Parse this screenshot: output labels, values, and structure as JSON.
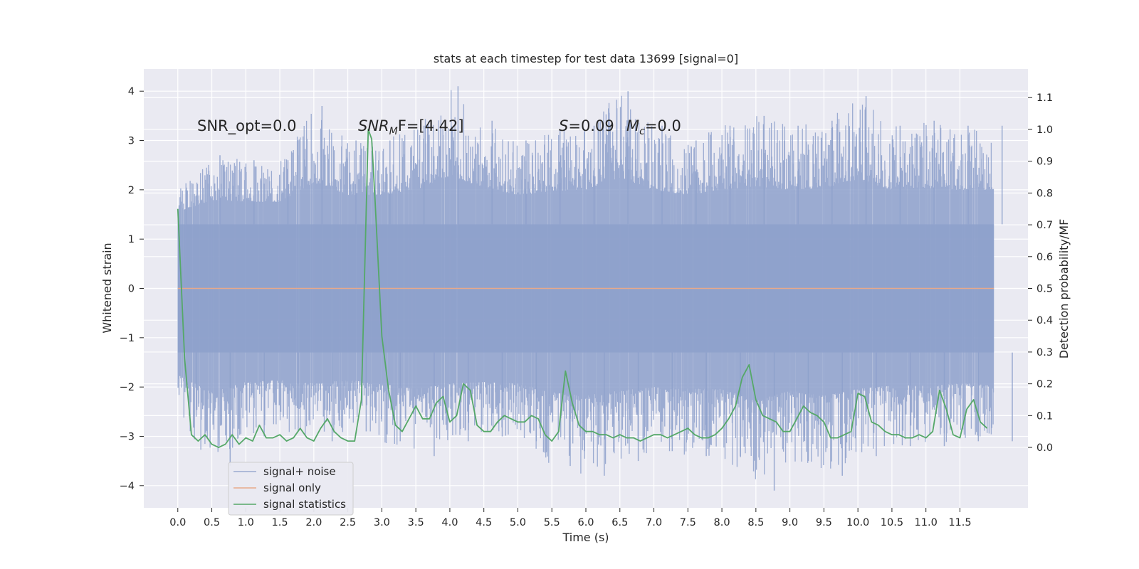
{
  "chart_data": {
    "type": "line",
    "title": "stats at each timestep for test data 13699 [signal=0]",
    "xlabel": "Time (s)",
    "ylabel": "Whitened strain",
    "y2label": "Detection probability/MF",
    "xlim": [
      -0.5,
      12.5
    ],
    "ylim": [
      -4.45,
      4.45
    ],
    "y2lim": [
      -0.19,
      1.19
    ],
    "x_ticks": [
      0.0,
      0.5,
      1.0,
      1.5,
      2.0,
      2.5,
      3.0,
      3.5,
      4.0,
      4.5,
      5.0,
      5.5,
      6.0,
      6.5,
      7.0,
      7.5,
      8.0,
      8.5,
      9.0,
      9.5,
      10.0,
      10.5,
      11.0,
      11.5
    ],
    "x_tick_labels": [
      "0.0",
      "0.5",
      "1.0",
      "1.5",
      "2.0",
      "2.5",
      "3.0",
      "3.5",
      "4.0",
      "4.5",
      "5.0",
      "5.5",
      "6.0",
      "6.5",
      "7.0",
      "7.5",
      "8.0",
      "8.5",
      "9.0",
      "9.5",
      "10.0",
      "10.5",
      "11.0",
      "11.5"
    ],
    "y_ticks": [
      -4,
      -3,
      -2,
      -1,
      0,
      1,
      2,
      3,
      4
    ],
    "y_tick_labels": [
      "−4",
      "−3",
      "−2",
      "−1",
      "0",
      "1",
      "2",
      "3",
      "4"
    ],
    "y2_ticks": [
      0.0,
      0.1,
      0.2,
      0.3,
      0.4,
      0.5,
      0.6,
      0.7,
      0.8,
      0.9,
      1.0,
      1.1
    ],
    "y2_tick_labels": [
      "0.0",
      "0.1",
      "0.2",
      "0.3",
      "0.4",
      "0.5",
      "0.6",
      "0.7",
      "0.8",
      "0.9",
      "1.0",
      "1.1"
    ],
    "grid": true,
    "legend": "lower-left",
    "annotations": {
      "snr_opt": "SNR_opt=0.0",
      "snr_mf_main": "SNR",
      "snr_mf_sub": "M",
      "snr_mf_rest": "F=[4.42]",
      "s_main": "S",
      "s_rest": "=0.09",
      "mc_main": "M",
      "mc_sub": "c",
      "mc_rest": "=0.0"
    },
    "series": [
      {
        "name": "signal+ noise",
        "axis": "left",
        "color": "#8da0cb",
        "opacity": 0.85,
        "x_range": [
          0.0,
          12.0
        ],
        "dense_band_abs": 1.3,
        "spike_max": [
          [
            0.0,
            2.0,
            -2.6
          ],
          [
            0.5,
            2.7,
            -3.6
          ],
          [
            1.0,
            2.6,
            -3.0
          ],
          [
            1.5,
            2.6,
            -2.9
          ],
          [
            2.0,
            3.7,
            -3.1
          ],
          [
            2.5,
            3.0,
            -2.9
          ],
          [
            3.0,
            3.0,
            -3.1
          ],
          [
            3.5,
            3.3,
            -3.4
          ],
          [
            4.0,
            4.1,
            -3.1
          ],
          [
            4.5,
            3.4,
            -3.0
          ],
          [
            5.0,
            3.0,
            -3.1
          ],
          [
            5.5,
            3.2,
            -3.6
          ],
          [
            6.0,
            3.3,
            -3.8
          ],
          [
            6.5,
            4.0,
            -3.5
          ],
          [
            7.0,
            3.3,
            -3.3
          ],
          [
            7.5,
            3.0,
            -3.4
          ],
          [
            8.0,
            3.3,
            -3.4
          ],
          [
            8.5,
            3.5,
            -4.1
          ],
          [
            9.0,
            3.3,
            -3.5
          ],
          [
            9.5,
            3.4,
            -3.8
          ],
          [
            10.0,
            3.9,
            -3.4
          ],
          [
            10.5,
            3.3,
            -3.2
          ],
          [
            11.0,
            3.4,
            -3.2
          ],
          [
            11.5,
            3.3,
            -3.1
          ],
          [
            12.0,
            3.3,
            -3.1
          ]
        ]
      },
      {
        "name": "signal only",
        "axis": "left",
        "color": "#e8a98a",
        "x": [
          0.0,
          12.0
        ],
        "y": [
          0.0,
          0.0
        ]
      },
      {
        "name": "signal statistics",
        "axis": "right",
        "color": "#55a868",
        "x": [
          0.0,
          0.1,
          0.2,
          0.3,
          0.4,
          0.5,
          0.6,
          0.7,
          0.8,
          0.9,
          1.0,
          1.1,
          1.2,
          1.3,
          1.4,
          1.5,
          1.6,
          1.7,
          1.8,
          1.9,
          2.0,
          2.1,
          2.2,
          2.3,
          2.4,
          2.5,
          2.6,
          2.7,
          2.8,
          2.85,
          2.9,
          3.0,
          3.1,
          3.2,
          3.3,
          3.4,
          3.5,
          3.6,
          3.7,
          3.8,
          3.9,
          4.0,
          4.1,
          4.2,
          4.3,
          4.4,
          4.5,
          4.6,
          4.7,
          4.8,
          4.9,
          5.0,
          5.1,
          5.2,
          5.3,
          5.4,
          5.5,
          5.6,
          5.7,
          5.8,
          5.9,
          6.0,
          6.1,
          6.2,
          6.3,
          6.4,
          6.5,
          6.6,
          6.7,
          6.8,
          6.9,
          7.0,
          7.1,
          7.2,
          7.3,
          7.4,
          7.5,
          7.6,
          7.7,
          7.8,
          7.9,
          8.0,
          8.1,
          8.2,
          8.3,
          8.4,
          8.5,
          8.6,
          8.7,
          8.8,
          8.9,
          9.0,
          9.1,
          9.2,
          9.3,
          9.4,
          9.5,
          9.6,
          9.7,
          9.8,
          9.9,
          10.0,
          10.1,
          10.2,
          10.3,
          10.4,
          10.5,
          10.6,
          10.7,
          10.8,
          10.9,
          11.0,
          11.1,
          11.2,
          11.3,
          11.4,
          11.5,
          11.6,
          11.7,
          11.8,
          11.9
        ],
        "y": [
          0.75,
          0.28,
          0.04,
          0.02,
          0.04,
          0.01,
          0.0,
          0.01,
          0.04,
          0.01,
          0.03,
          0.02,
          0.07,
          0.03,
          0.03,
          0.04,
          0.02,
          0.03,
          0.06,
          0.03,
          0.02,
          0.06,
          0.09,
          0.05,
          0.03,
          0.02,
          0.02,
          0.15,
          1.0,
          0.97,
          0.78,
          0.35,
          0.18,
          0.07,
          0.05,
          0.09,
          0.13,
          0.09,
          0.09,
          0.14,
          0.16,
          0.08,
          0.1,
          0.2,
          0.18,
          0.07,
          0.05,
          0.05,
          0.08,
          0.1,
          0.09,
          0.08,
          0.08,
          0.1,
          0.09,
          0.04,
          0.02,
          0.05,
          0.24,
          0.14,
          0.07,
          0.05,
          0.05,
          0.04,
          0.04,
          0.03,
          0.04,
          0.03,
          0.03,
          0.02,
          0.03,
          0.04,
          0.04,
          0.03,
          0.04,
          0.05,
          0.06,
          0.04,
          0.03,
          0.03,
          0.04,
          0.06,
          0.09,
          0.13,
          0.22,
          0.26,
          0.15,
          0.1,
          0.09,
          0.08,
          0.05,
          0.05,
          0.09,
          0.13,
          0.11,
          0.1,
          0.08,
          0.03,
          0.03,
          0.04,
          0.05,
          0.17,
          0.16,
          0.08,
          0.07,
          0.05,
          0.04,
          0.04,
          0.03,
          0.03,
          0.04,
          0.03,
          0.05,
          0.18,
          0.12,
          0.04,
          0.03,
          0.12,
          0.15,
          0.08,
          0.06
        ]
      }
    ]
  }
}
